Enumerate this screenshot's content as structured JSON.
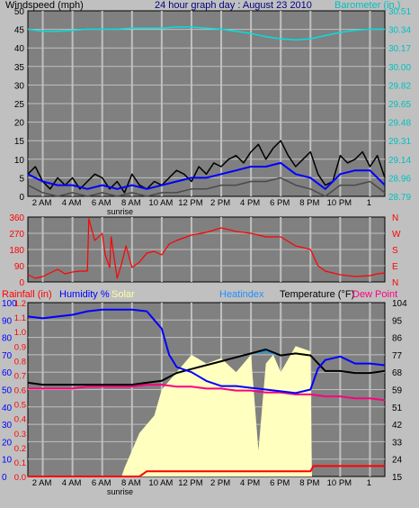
{
  "colors": {
    "background": "#c0c0c0",
    "plot_bg": "#808080",
    "grid": "#c0c0c0",
    "windspeed": "#000000",
    "windspeed_avg": "#0000ff",
    "windspeed_min": "#4a4a4a",
    "barometer": "#00e0e0",
    "wind_dir": "#ff0000",
    "rainfall": "#ff0000",
    "humidity": "#0000ff",
    "solar": "#ffffc0",
    "heatindex": "#00a0ff",
    "temperature": "#000000",
    "dewpoint": "#ff0080"
  },
  "header": {
    "windspeed_label": "Windspeed (mph)",
    "title": "24 hour graph day : August 23 2010",
    "barometer_label": "Barometer (in.)"
  },
  "legend": {
    "rainfall": "Rainfall (in)",
    "humidity": "Humidity %",
    "solar": "Solar",
    "heatindex": "Heatindex",
    "temperature": "Temperature (°F)",
    "dewpoint": "Dew Point"
  },
  "chart_data": [
    {
      "type": "line",
      "title": "24 hour graph day : August 23 2010",
      "x_ticks": [
        "2 AM",
        "4 AM",
        "6 AM",
        "8 AM",
        "10 AM",
        "12 PM",
        "2 PM",
        "4 PM",
        "6 PM",
        "8 PM",
        "10 PM",
        "1"
      ],
      "annotation": "sunrise",
      "left_axis": {
        "label": "Windspeed (mph)",
        "ticks": [
          "50",
          "45",
          "40",
          "35",
          "30",
          "25",
          "20",
          "15",
          "10",
          "5",
          "0"
        ],
        "ylim": [
          0,
          50
        ]
      },
      "right_axis": {
        "label": "Barometer (in.)",
        "ticks": [
          "30.51",
          "30.34",
          "30.17",
          "30.00",
          "29.82",
          "29.65",
          "29.48",
          "29.31",
          "29.14",
          "28.96",
          "28.79"
        ],
        "ylim": [
          28.79,
          30.51
        ]
      },
      "series": [
        {
          "name": "Windspeed",
          "axis": "left",
          "x": [
            0,
            0.5,
            1,
            1.5,
            2,
            2.5,
            3,
            3.5,
            4,
            4.5,
            5,
            5.5,
            6,
            6.5,
            7,
            7.5,
            8,
            8.5,
            9,
            9.5,
            10,
            10.5,
            11,
            11.5,
            12,
            12.5,
            13,
            13.5,
            14,
            14.5,
            15,
            15.5,
            16,
            16.5,
            17,
            17.5,
            18,
            18.5,
            19,
            19.5,
            20,
            20.5,
            21,
            21.5,
            22,
            22.5,
            23,
            23.5,
            24
          ],
          "values": [
            6,
            8,
            4,
            2,
            5,
            3,
            5,
            2,
            4,
            6,
            5,
            2,
            4,
            1,
            6,
            3,
            2,
            4,
            3,
            5,
            7,
            6,
            4,
            8,
            6,
            9,
            8,
            10,
            11,
            9,
            12,
            14,
            10,
            13,
            15,
            11,
            8,
            10,
            12,
            6,
            3,
            4,
            11,
            9,
            10,
            12,
            8,
            11,
            5
          ]
        },
        {
          "name": "Windspeed average",
          "axis": "left",
          "x": [
            0,
            1,
            2,
            3,
            4,
            5,
            6,
            7,
            8,
            9,
            10,
            11,
            12,
            13,
            14,
            15,
            16,
            17,
            18,
            19,
            20,
            21,
            22,
            23,
            24
          ],
          "values": [
            6,
            4,
            3,
            3,
            2,
            3,
            2,
            3,
            2,
            3,
            4,
            5,
            5,
            6,
            7,
            8,
            8,
            9,
            6,
            5,
            2,
            6,
            7,
            7,
            3
          ]
        },
        {
          "name": "Windspeed minimum",
          "axis": "left",
          "x": [
            0,
            1,
            2,
            3,
            4,
            5,
            6,
            7,
            8,
            9,
            10,
            11,
            12,
            13,
            14,
            15,
            16,
            17,
            18,
            19,
            20,
            21,
            22,
            23,
            24
          ],
          "values": [
            3,
            1,
            0,
            1,
            0,
            1,
            0,
            1,
            0,
            1,
            1,
            2,
            2,
            3,
            3,
            4,
            4,
            5,
            3,
            2,
            0,
            3,
            3,
            4,
            1
          ]
        },
        {
          "name": "Barometer",
          "axis": "right",
          "x": [
            0,
            1,
            2,
            3,
            4,
            5,
            6,
            7,
            8,
            9,
            10,
            11,
            12,
            13,
            14,
            15,
            16,
            17,
            18,
            19,
            20,
            21,
            22,
            23,
            24
          ],
          "values": [
            30.34,
            30.32,
            30.32,
            30.33,
            30.34,
            30.34,
            30.34,
            30.35,
            30.35,
            30.35,
            30.36,
            30.36,
            30.35,
            30.34,
            30.32,
            30.3,
            30.27,
            30.25,
            30.24,
            30.25,
            30.28,
            30.31,
            30.33,
            30.34,
            30.34
          ]
        }
      ]
    },
    {
      "type": "line",
      "title": "",
      "x_ticks": [],
      "left_axis": {
        "label": "",
        "ticks": [
          "360",
          "270",
          "180",
          "90",
          "0"
        ],
        "ylim": [
          0,
          360
        ]
      },
      "right_axis": {
        "label": "",
        "ticks": [
          "N",
          "W",
          "S",
          "E",
          "N"
        ]
      },
      "series": [
        {
          "name": "Wind direction",
          "axis": "left",
          "x": [
            0,
            0.5,
            1,
            1.5,
            2,
            2.5,
            3,
            3.5,
            4,
            4.1,
            4.5,
            5,
            5.2,
            5.5,
            5.6,
            6,
            6.3,
            6.6,
            7,
            7.5,
            8,
            8.5,
            9,
            9.5,
            10,
            11,
            12,
            13,
            14,
            15,
            16,
            17,
            18,
            19,
            19.5,
            20,
            21,
            22,
            23,
            23.5,
            24
          ],
          "values": [
            40,
            20,
            30,
            50,
            70,
            45,
            55,
            60,
            60,
            350,
            230,
            270,
            150,
            80,
            250,
            20,
            100,
            200,
            80,
            110,
            160,
            170,
            150,
            210,
            230,
            260,
            275,
            300,
            280,
            270,
            250,
            250,
            200,
            180,
            90,
            60,
            40,
            30,
            35,
            45,
            50
          ]
        }
      ]
    },
    {
      "type": "line",
      "title": "",
      "x_ticks": [
        "2 AM",
        "4 AM",
        "6 AM",
        "8 AM",
        "10 AM",
        "12 PM",
        "2 PM",
        "4 PM",
        "6 PM",
        "8 PM",
        "10 PM",
        "1"
      ],
      "annotation": "sunrise",
      "left_axis": {
        "label": "Rainfall (in)",
        "ticks_outer": [
          "100",
          "90",
          "80",
          "70",
          "60",
          "50",
          "40",
          "30",
          "20",
          "10",
          "0"
        ],
        "ticks_inner": [
          "1.2",
          "1.1",
          "1.0",
          "0.9",
          "0.8",
          "0.7",
          "0.6",
          "0.5",
          "0.4",
          "0.3",
          "0.2",
          "0.1",
          "0.0"
        ],
        "ylim": [
          0,
          100
        ]
      },
      "right_axis": {
        "label": "Temperature (°F)",
        "ticks": [
          "104",
          "95",
          "86",
          "77",
          "68",
          "59",
          "51",
          "42",
          "33",
          "24",
          "15"
        ],
        "ylim": [
          15,
          104
        ]
      },
      "series": [
        {
          "name": "Humidity %",
          "axis": "left",
          "x": [
            0,
            1,
            2,
            3,
            4,
            5,
            6,
            7,
            8,
            8.5,
            9,
            9.5,
            10,
            11,
            12,
            13,
            14,
            15,
            16,
            17,
            18,
            19,
            19.5,
            20,
            21,
            22,
            23,
            24
          ],
          "values": [
            92,
            91,
            92,
            93,
            95,
            96,
            96,
            96,
            95,
            90,
            85,
            70,
            63,
            60,
            55,
            52,
            52,
            51,
            50,
            49,
            48,
            50,
            62,
            67,
            69,
            65,
            65,
            64
          ]
        },
        {
          "name": "Solar",
          "axis": "left",
          "x": [
            0,
            6.3,
            6.5,
            7,
            7.5,
            8,
            8.5,
            9,
            10,
            11,
            12,
            13,
            14,
            15,
            15.5,
            16,
            16.5,
            17,
            18,
            19,
            19.1,
            24
          ],
          "values": [
            0,
            0,
            5,
            15,
            25,
            30,
            35,
            50,
            60,
            70,
            65,
            68,
            60,
            70,
            15,
            65,
            70,
            60,
            75,
            72,
            0,
            0
          ]
        },
        {
          "name": "Rainfall (in)",
          "axis": "left",
          "x": [
            0,
            7.5,
            8,
            19,
            19.2,
            24
          ],
          "values": [
            0,
            0,
            3,
            3,
            6,
            6
          ]
        },
        {
          "name": "Heatindex",
          "axis": "right",
          "x": [
            0,
            1,
            2,
            3,
            4,
            5,
            6,
            7,
            8,
            9,
            10,
            11,
            12,
            13,
            14,
            15,
            16,
            17,
            18,
            19,
            20,
            21,
            22,
            23,
            24
          ],
          "values": [
            63,
            62,
            62,
            62,
            62,
            62,
            62,
            62,
            63,
            64,
            68,
            70,
            72,
            74,
            76,
            78,
            79,
            77,
            78,
            77,
            69,
            69,
            68,
            68,
            69
          ]
        },
        {
          "name": "Temperature",
          "axis": "right",
          "x": [
            0,
            1,
            2,
            3,
            4,
            5,
            6,
            7,
            8,
            9,
            10,
            11,
            12,
            13,
            14,
            15,
            16,
            17,
            18,
            19,
            20,
            21,
            22,
            23,
            24
          ],
          "values": [
            63,
            62,
            62,
            62,
            62,
            62,
            62,
            62,
            63,
            64,
            68,
            70,
            72,
            74,
            76,
            78,
            80,
            77,
            78,
            77,
            69,
            69,
            68,
            68,
            69
          ]
        },
        {
          "name": "Dew Point",
          "axis": "right",
          "x": [
            0,
            1,
            2,
            3,
            4,
            5,
            6,
            7,
            8,
            9,
            10,
            11,
            12,
            13,
            14,
            15,
            16,
            17,
            18,
            19,
            20,
            21,
            22,
            23,
            24
          ],
          "values": [
            60,
            60,
            60,
            60,
            61,
            61,
            61,
            61,
            62,
            62,
            61,
            61,
            60,
            60,
            59,
            59,
            58,
            58,
            57,
            57,
            56,
            56,
            55,
            55,
            54
          ]
        }
      ]
    }
  ]
}
